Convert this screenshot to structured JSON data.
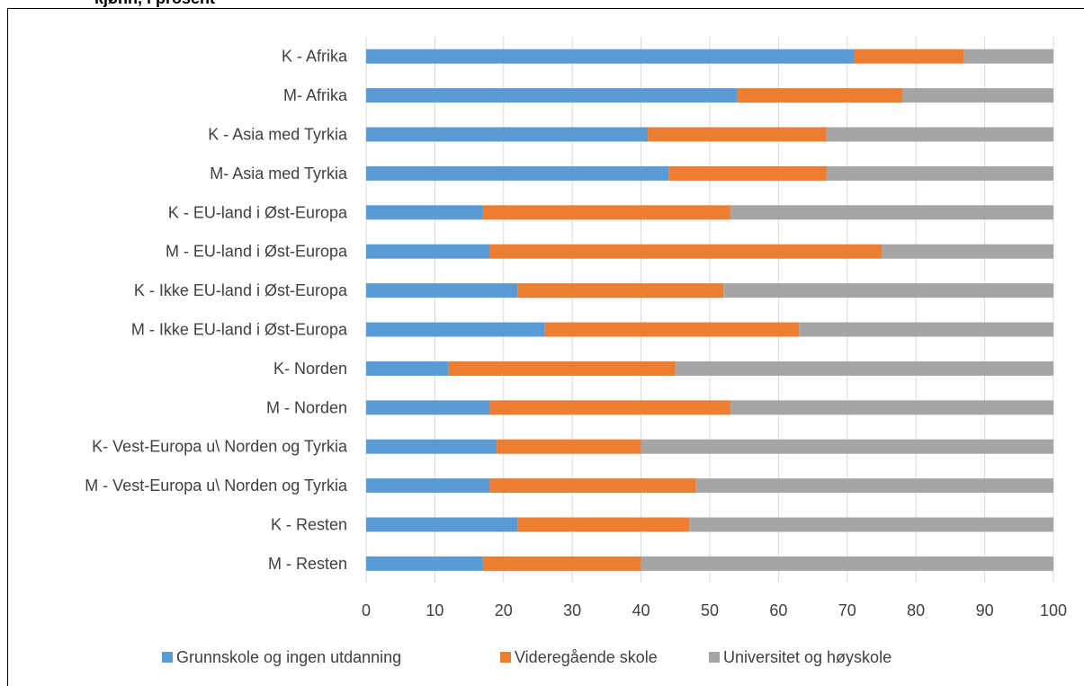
{
  "clipped_title": "kjønn, i prosent",
  "chart_data": {
    "type": "bar",
    "orientation": "horizontal",
    "stacked": true,
    "categories": [
      "K - Afrika",
      "M- Afrika",
      "K - Asia med Tyrkia",
      "M- Asia med Tyrkia",
      "K - EU-land i Øst-Europa",
      "M - EU-land i Øst-Europa",
      "K - Ikke EU-land i Øst-Europa",
      "M - Ikke EU-land i Øst-Europa",
      "K- Norden",
      "M - Norden",
      "K- Vest-Europa u\\ Norden og Tyrkia",
      "M - Vest-Europa u\\ Norden og Tyrkia",
      "K - Resten",
      "M - Resten"
    ],
    "series": [
      {
        "name": "Grunnskole og ingen utdanning",
        "color": "#5B9BD5",
        "values": [
          71,
          54,
          41,
          44,
          17,
          18,
          22,
          26,
          12,
          18,
          19,
          18,
          22,
          17
        ]
      },
      {
        "name": "Videregående skole",
        "color": "#ED7D31",
        "values": [
          16,
          24,
          26,
          23,
          36,
          57,
          30,
          37,
          33,
          35,
          21,
          30,
          25,
          23
        ]
      },
      {
        "name": "Universitet og høyskole",
        "color": "#A5A5A5",
        "values": [
          13,
          22,
          33,
          33,
          47,
          25,
          48,
          37,
          55,
          47,
          60,
          52,
          53,
          60
        ]
      }
    ],
    "xlim": [
      0,
      100
    ],
    "xticks": [
      "0",
      "10",
      "20",
      "30",
      "40",
      "50",
      "60",
      "70",
      "80",
      "90",
      "100"
    ],
    "grid": "vertical",
    "gridColor": "#D9D9D9",
    "legend": "bottom"
  }
}
